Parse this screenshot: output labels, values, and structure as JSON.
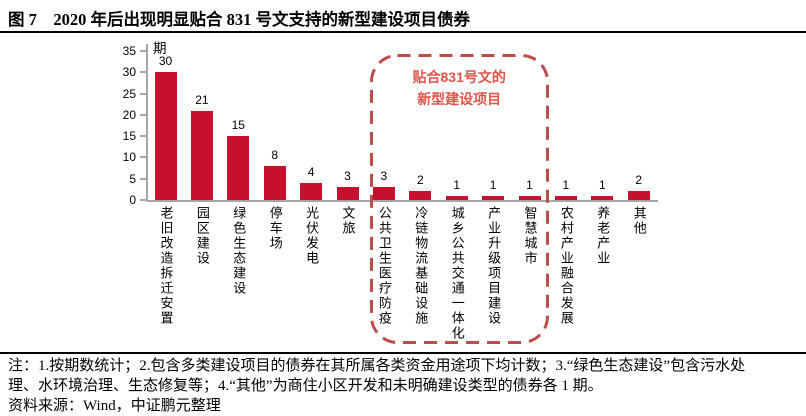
{
  "title": "图 7　2020 年后出现明显贴合 831 号文支持的新型建设项目债券",
  "chart_data": {
    "type": "bar",
    "unit": "期",
    "categories": [
      "老旧改造拆迁安置",
      "园区建设",
      "绿色生态建设",
      "停车场",
      "光伏发电",
      "文旅",
      "公共卫生医疗防疫",
      "冷链物流基础设施",
      "城乡公共交通一体化",
      "产业升级项目建设",
      "智慧城市",
      "农村产业融合发展",
      "养老产业",
      "其他"
    ],
    "values": [
      30,
      21,
      15,
      8,
      4,
      3,
      3,
      2,
      1,
      1,
      1,
      1,
      1,
      2
    ],
    "yticks": [
      0,
      5,
      10,
      15,
      20,
      25,
      30,
      35
    ],
    "ylim": [
      0,
      35
    ],
    "grid": "off",
    "bar_color": "#C8102E",
    "axis_color": "#A6A6A6",
    "annotation": {
      "line1": "贴合831号文的",
      "line2": "新型建设项目",
      "text_color": "#DF5449",
      "border_color": "#BE4C49",
      "box_start_index": 6,
      "box_end_index": 10
    }
  },
  "notes": {
    "line1": "注：1.按期数统计；2.包含多类建设项目的债券在其所属各类资金用途项下均计数；3.“绿色生态建设”包含污水处",
    "line2": "理、水环境治理、生态修复等；4.“其他”为商住小区开发和未明确建设类型的债券各 1 期。",
    "source": "资料来源：Wind，中证鹏元整理"
  }
}
